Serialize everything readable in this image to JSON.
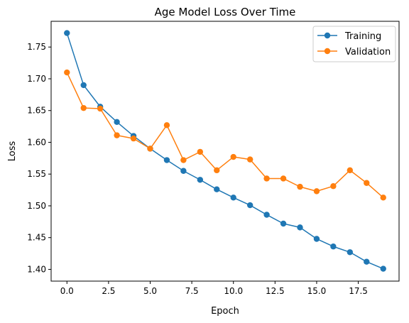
{
  "chart_data": {
    "type": "line",
    "title": "Age Model Loss Over Time",
    "xlabel": "Epoch",
    "ylabel": "Loss",
    "x": [
      0,
      1,
      2,
      3,
      4,
      5,
      6,
      7,
      8,
      9,
      10,
      11,
      12,
      13,
      14,
      15,
      16,
      17,
      18,
      19
    ],
    "xlim": [
      -0.95,
      19.95
    ],
    "ylim": [
      1.3815,
      1.7905
    ],
    "xticks": [
      0.0,
      2.5,
      5.0,
      7.5,
      10.0,
      12.5,
      15.0,
      17.5
    ],
    "xtick_labels": [
      "0.0",
      "2.5",
      "5.0",
      "7.5",
      "10.0",
      "12.5",
      "15.0",
      "17.5"
    ],
    "yticks": [
      1.4,
      1.45,
      1.5,
      1.55,
      1.6,
      1.65,
      1.7,
      1.75
    ],
    "ytick_labels": [
      "1.40",
      "1.45",
      "1.50",
      "1.55",
      "1.60",
      "1.65",
      "1.70",
      "1.75"
    ],
    "grid": false,
    "legend_position": "top-right",
    "series": [
      {
        "name": "Training",
        "color": "#1f77b4",
        "marker": "circle",
        "values": [
          1.772,
          1.69,
          1.656,
          1.632,
          1.61,
          1.59,
          1.572,
          1.555,
          1.541,
          1.526,
          1.513,
          1.501,
          1.486,
          1.472,
          1.466,
          1.448,
          1.436,
          1.427,
          1.412,
          1.401
        ]
      },
      {
        "name": "Validation",
        "color": "#ff7f0e",
        "marker": "circle",
        "values": [
          1.71,
          1.654,
          1.653,
          1.611,
          1.606,
          1.59,
          1.627,
          1.572,
          1.585,
          1.556,
          1.577,
          1.573,
          1.543,
          1.543,
          1.53,
          1.523,
          1.531,
          1.556,
          1.536,
          1.513
        ]
      }
    ]
  }
}
